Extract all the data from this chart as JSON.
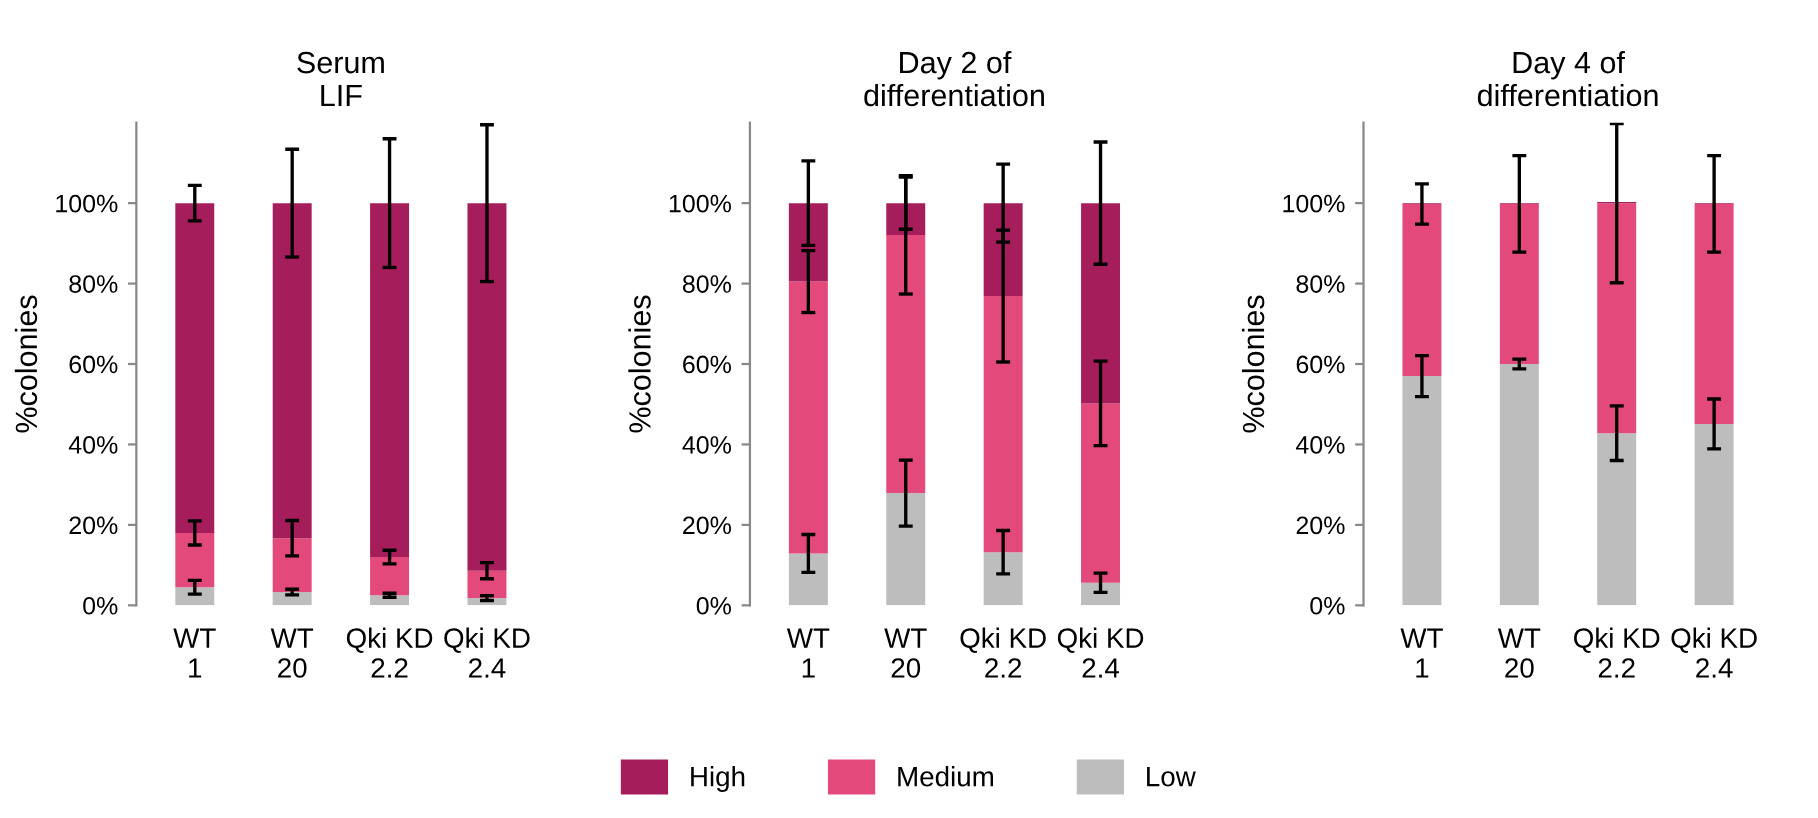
{
  "chart_data": [
    {
      "type": "bar",
      "stacked": true,
      "title": "Serum\nLIF",
      "ylabel": "%colonies",
      "categories": [
        "WT\n1",
        "WT\n20",
        "Qki KD\n2.2",
        "Qki KD\n2.4"
      ],
      "ylim": [
        0,
        120
      ],
      "yticks": [
        {
          "value": 0,
          "label": "0%"
        },
        {
          "value": 20,
          "label": "20%"
        },
        {
          "value": 40,
          "label": "40%"
        },
        {
          "value": 60,
          "label": "60%"
        },
        {
          "value": 80,
          "label": "80%"
        },
        {
          "value": 100,
          "label": "100%"
        }
      ],
      "grid": false,
      "series": [
        {
          "color": "#bdbdbd",
          "values": [
            4.5,
            3.3,
            2.5,
            1.8
          ],
          "errors": [
            1.7,
            0.7,
            0.5,
            0.6
          ]
        },
        {
          "color": "#e34a7b",
          "values": [
            13.5,
            13.4,
            9.5,
            6.8
          ],
          "errors": [
            3,
            4.4,
            1.7,
            2
          ]
        },
        {
          "color": "#a51d5b",
          "values": [
            82,
            83.3,
            88,
            91.4
          ],
          "errors": [
            4.4,
            13.4,
            16,
            19.5
          ]
        }
      ]
    },
    {
      "type": "bar",
      "stacked": true,
      "title": "Day 2 of\ndifferentiation",
      "ylabel": "%colonies",
      "categories": [
        "WT\n1",
        "WT\n20",
        "Qki KD\n2.2",
        "Qki KD\n2.4"
      ],
      "ylim": [
        0,
        120
      ],
      "yticks": [
        {
          "value": 0,
          "label": "0%"
        },
        {
          "value": 20,
          "label": "20%"
        },
        {
          "value": 40,
          "label": "40%"
        },
        {
          "value": 60,
          "label": "60%"
        },
        {
          "value": 80,
          "label": "80%"
        },
        {
          "value": 100,
          "label": "100%"
        }
      ],
      "grid": false,
      "legend": "bottom",
      "series": [
        {
          "name": "Low",
          "color": "#bdbdbd",
          "values": [
            12.9,
            27.9,
            13.2,
            5.6
          ],
          "errors": [
            4.7,
            8.2,
            5.4,
            2.4
          ]
        },
        {
          "name": "Medium",
          "color": "#e34a7b",
          "values": [
            67.6,
            64.2,
            63.7,
            44.6
          ],
          "errors": [
            7.7,
            14.7,
            16.4,
            10.5
          ]
        },
        {
          "name": "High",
          "color": "#a51d5b",
          "values": [
            19.5,
            7.9,
            23.1,
            49.8
          ],
          "errors": [
            10.5,
            6.5,
            9.7,
            15.2
          ]
        }
      ]
    },
    {
      "type": "bar",
      "stacked": true,
      "title": "Day 4 of\ndifferentiation",
      "ylabel": "%colonies",
      "categories": [
        "WT\n1",
        "WT\n20",
        "Qki KD\n2.2",
        "Qki KD\n2.4"
      ],
      "ylim": [
        0,
        120
      ],
      "yticks": [
        {
          "value": 0,
          "label": "0%"
        },
        {
          "value": 20,
          "label": "20%"
        },
        {
          "value": 40,
          "label": "40%"
        },
        {
          "value": 60,
          "label": "60%"
        },
        {
          "value": 80,
          "label": "80%"
        },
        {
          "value": 100,
          "label": "100%"
        }
      ],
      "grid": false,
      "series": [
        {
          "color": "#bdbdbd",
          "values": [
            57,
            60,
            42.8,
            45.1
          ],
          "errors": [
            5.1,
            1.2,
            6.8,
            6.2
          ]
        },
        {
          "color": "#e34a7b",
          "values": [
            42.8,
            39.8,
            57.2,
            54.7
          ],
          "errors": [
            5,
            12,
            19.8,
            12
          ]
        },
        {
          "color": "#a51d5b",
          "values": [
            0.2,
            0.2,
            0.3,
            0.2
          ],
          "errors": [
            null,
            null,
            null,
            null
          ]
        }
      ]
    }
  ]
}
